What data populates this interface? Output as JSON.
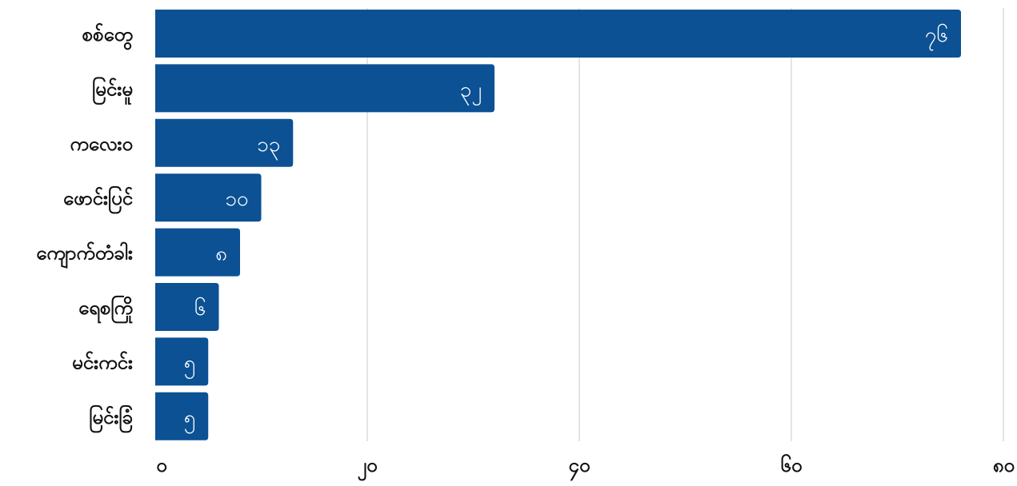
{
  "chart_data": {
    "type": "bar",
    "orientation": "horizontal",
    "categories": [
      "စစ်တွေ",
      "မြင်းမူ",
      "ကလေးဝ",
      "ဖောင်းပြင်",
      "ကျောက်တံခါး",
      "ရေစကြို",
      "မင်းကင်း",
      "မြင်းခြံ"
    ],
    "values": [
      76,
      32,
      13,
      10,
      8,
      6,
      5,
      5
    ],
    "value_labels": [
      "၇၆",
      "၃၂",
      "၁၃",
      "၁၀",
      "၈",
      "၆",
      "၅",
      "၅"
    ],
    "xlim": [
      0,
      80
    ],
    "xticks": [
      0,
      20,
      40,
      60,
      80
    ],
    "xtick_labels": [
      "၀",
      "၂၀",
      "၄၀",
      "၆၀",
      "၈၀"
    ],
    "grid": true,
    "bar_color": "#0b5194"
  }
}
